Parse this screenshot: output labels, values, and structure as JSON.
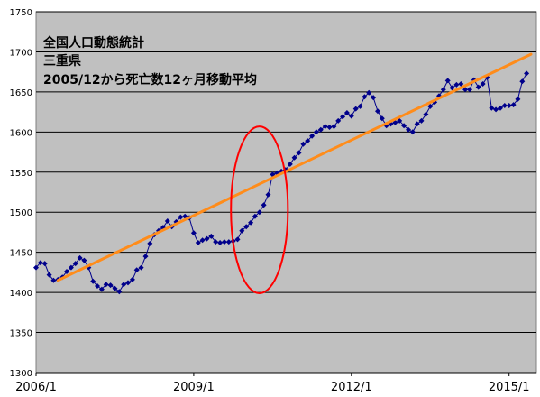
{
  "chart_data": {
    "type": "line",
    "title_lines": [
      "全国人口動態統計",
      "三重県",
      "2005/12から死亡数12ヶ月移動平均"
    ],
    "xlabel": "",
    "ylabel": "",
    "x_start": "2006/1",
    "x_ticks": [
      "2006/1",
      "2009/1",
      "2012/1",
      "2015/1"
    ],
    "x_tick_months": [
      0,
      36,
      72,
      108
    ],
    "x_range_months": [
      0,
      113
    ],
    "ylim": [
      1300,
      1750
    ],
    "y_ticks": [
      1300,
      1350,
      1400,
      1450,
      1500,
      1550,
      1600,
      1650,
      1700,
      1750
    ],
    "grid": "horizontal",
    "plot_background": "#c0c0c0",
    "series": [
      {
        "color": "#00008b",
        "marker": "diamond",
        "values": [
          1431,
          1437,
          1436,
          1422,
          1415,
          1416,
          1419,
          1426,
          1431,
          1436,
          1443,
          1440,
          1431,
          1414,
          1408,
          1404,
          1410,
          1409,
          1405,
          1401,
          1410,
          1412,
          1416,
          1428,
          1431,
          1445,
          1461,
          1472,
          1477,
          1481,
          1489,
          1482,
          1488,
          1494,
          1495,
          1493,
          1474,
          1462,
          1465,
          1467,
          1470,
          1463,
          1462,
          1463,
          1463,
          1464,
          1466,
          1477,
          1482,
          1487,
          1495,
          1500,
          1509,
          1522,
          1547,
          1549,
          1551,
          1553,
          1560,
          1568,
          1574,
          1585,
          1589,
          1595,
          1600,
          1603,
          1607,
          1606,
          1607,
          1614,
          1619,
          1624,
          1620,
          1629,
          1632,
          1644,
          1649,
          1643,
          1626,
          1617,
          1608,
          1610,
          1612,
          1614,
          1608,
          1603,
          1600,
          1610,
          1614,
          1622,
          1632,
          1637,
          1645,
          1653,
          1664,
          1655,
          1659,
          1660,
          1653,
          1653,
          1665,
          1656,
          1660,
          1668,
          1630,
          1628,
          1630,
          1633,
          1633,
          1634,
          1641,
          1663,
          1673
        ]
      },
      {
        "color": "#ff8c1a",
        "kind": "trendline",
        "x_months": [
          5,
          113
        ],
        "values": [
          1415,
          1697
        ]
      }
    ],
    "annotations": [
      {
        "shape": "ellipse",
        "color": "#ff0000",
        "x_month": 51,
        "y_value": 1503,
        "x_radius_months": 6.5,
        "y_radius_value": 104
      }
    ]
  }
}
